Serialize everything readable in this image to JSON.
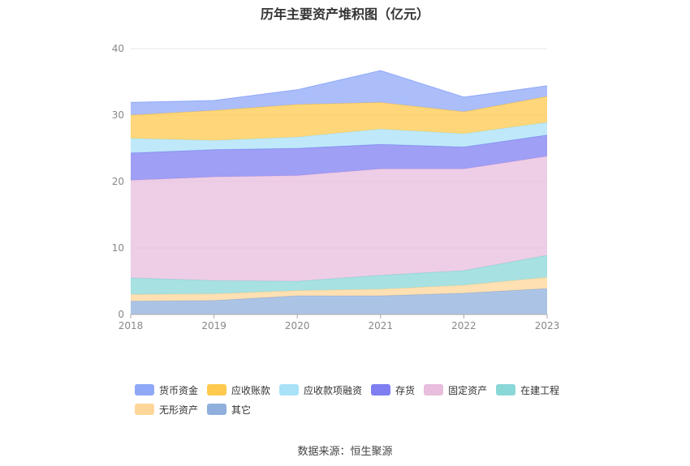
{
  "title": "历年主要资产堆积图（亿元）",
  "source": "数据来源：恒生聚源",
  "chart_data": {
    "type": "area",
    "stacked": true,
    "x": [
      "2018",
      "2019",
      "2020",
      "2021",
      "2022",
      "2023"
    ],
    "ylim": [
      0,
      40
    ],
    "yticks": [
      0,
      10,
      20,
      30,
      40
    ],
    "grid": true,
    "legend_position": "bottom",
    "series": [
      {
        "name": "其它",
        "color": "#8fb0dd",
        "values": [
          2.0,
          2.1,
          2.8,
          2.8,
          3.2,
          3.9
        ]
      },
      {
        "name": "无形资产",
        "color": "#ffd699",
        "values": [
          1.0,
          1.0,
          0.8,
          1.0,
          1.2,
          1.7
        ]
      },
      {
        "name": "在建工程",
        "color": "#8ad7d8",
        "values": [
          2.5,
          2.0,
          1.4,
          2.1,
          2.2,
          3.3
        ]
      },
      {
        "name": "固定资产",
        "color": "#e8bddd",
        "values": [
          14.7,
          15.6,
          15.9,
          16.0,
          15.3,
          14.9
        ]
      },
      {
        "name": "存货",
        "color": "#7f7ff2",
        "values": [
          4.1,
          4.1,
          4.1,
          3.7,
          3.3,
          3.2
        ]
      },
      {
        "name": "应收款项融资",
        "color": "#a9e2f8",
        "values": [
          2.2,
          1.4,
          1.7,
          2.3,
          2.0,
          1.9
        ]
      },
      {
        "name": "应收账款",
        "color": "#ffc94d",
        "values": [
          3.5,
          4.5,
          4.9,
          4.0,
          3.3,
          3.9
        ]
      },
      {
        "name": "货币资金",
        "color": "#8fa8f8",
        "values": [
          1.9,
          1.5,
          2.2,
          4.8,
          2.2,
          1.6
        ]
      }
    ],
    "legend_order": [
      "货币资金",
      "应收账款",
      "应收款项融资",
      "存货",
      "固定资产",
      "在建工程",
      "无形资产",
      "其它"
    ]
  }
}
